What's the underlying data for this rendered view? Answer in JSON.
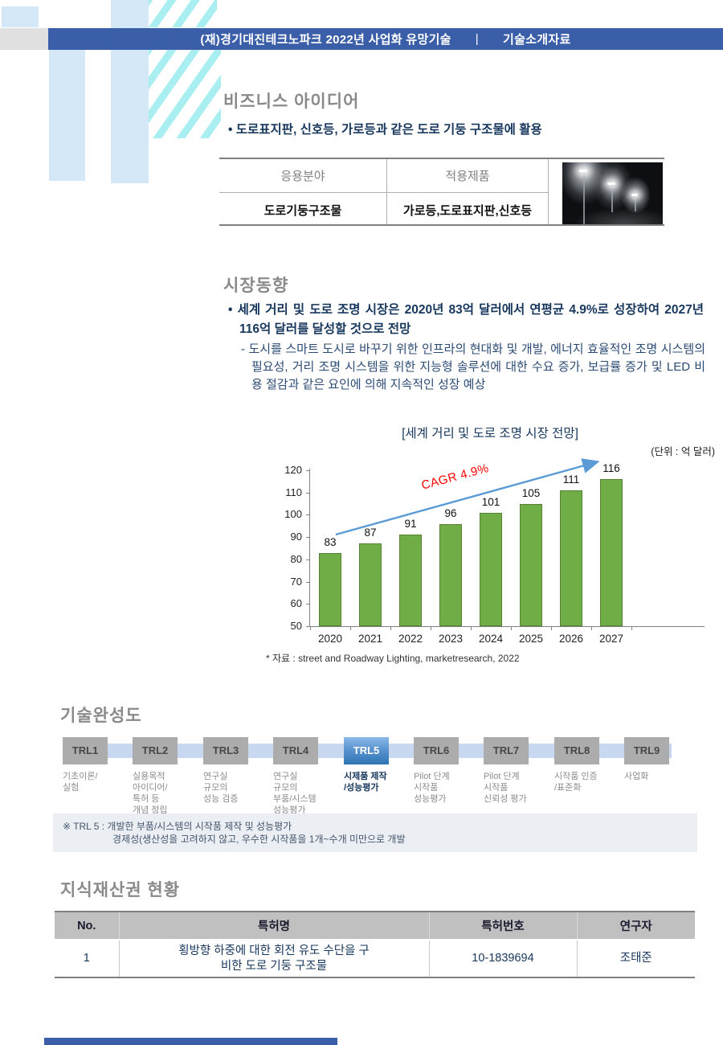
{
  "header": {
    "title_left": "(재)경기대진테크노파크 2022년 사업화 유망기술",
    "divider": "|",
    "title_right": "기술소개자료"
  },
  "business_idea": {
    "heading": "비즈니스 아이디어",
    "bullet": "• 도로표지판, 신호등, 가로등과 같은 도로 기둥 구조물에 활용",
    "table": {
      "headers": [
        "응용분야",
        "적용제품"
      ],
      "row": [
        "도로기둥구조물",
        "가로등,도로표지판,신호등"
      ]
    }
  },
  "market": {
    "heading": "시장동향",
    "bullet": "• 세계 거리 및 도로 조명 시장은 2020년 83억 달러에서 연평균 4.9%로 성장하여 2027년 116억 달러를 달성할 것으로 전망",
    "sub_bullet": "- 도시를 스마트 도시로 바꾸기 위한 인프라의 현대화 및 개발, 에너지 효율적인 조명 시스템의 필요성, 거리 조명 시스템을 위한 지능형 솔루션에 대한 수요 증가, 보급률 증가 및 LED 비용 절감과 같은 요인에 의해 지속적인 성장 예상"
  },
  "chart_data": {
    "type": "bar",
    "title": "[세계 거리 및 도로 조명 시장 전망]",
    "unit_label": "(단위 : 억 달러)",
    "categories": [
      "2020",
      "2021",
      "2022",
      "2023",
      "2024",
      "2025",
      "2026",
      "2027"
    ],
    "values": [
      83,
      87,
      91,
      96,
      101,
      105,
      111,
      116
    ],
    "ylabel": "",
    "xlabel": "",
    "ylim": [
      50,
      120
    ],
    "ytick_step": 10,
    "grid": false,
    "bar_color": "#70AD47",
    "bar_border_color": "#548235",
    "annotation": {
      "text": "CAGR 4.9%",
      "color": "#FF0000"
    },
    "arrow_color": "#5B9BD5",
    "source": "* 자료 : street and Roadway Lighting, marketresearch, 2022"
  },
  "trl": {
    "heading": "기술완성도",
    "active": "TRL5",
    "levels": [
      {
        "label": "TRL1",
        "desc_lines": [
          "기초이론/",
          "실험"
        ]
      },
      {
        "label": "TRL2",
        "desc_lines": [
          "실용목적",
          "아이디어/",
          "특허 등",
          "개념 정립"
        ]
      },
      {
        "label": "TRL3",
        "desc_lines": [
          "연구실",
          "규모의",
          "성능 검증"
        ]
      },
      {
        "label": "TRL4",
        "desc_lines": [
          "연구실",
          "규모의",
          "부품/시스템",
          "성능평가"
        ]
      },
      {
        "label": "TRL5",
        "desc_lines": [
          "시제품 제작",
          "/성능평가"
        ]
      },
      {
        "label": "TRL6",
        "desc_lines": [
          "Pilot 단계",
          "시작품",
          "성능평가"
        ]
      },
      {
        "label": "TRL7",
        "desc_lines": [
          "Pilot 단계",
          "시작품",
          "신뢰성 평가"
        ]
      },
      {
        "label": "TRL8",
        "desc_lines": [
          "시작품 인증",
          "/표준화"
        ]
      },
      {
        "label": "TRL9",
        "desc_lines": [
          "사업화"
        ]
      }
    ],
    "note_line1": "※ TRL 5  : 개발한 부품/시스템의 시작품 제작 및 성능평가",
    "note_line2": "경제성(생산성을 고려하지 않고, 우수한 시작품을 1개~수개 미만으로 개발"
  },
  "ip": {
    "heading": "지식재산권 현황",
    "columns": [
      "No.",
      "특허명",
      "특허번호",
      "연구자"
    ],
    "rows": [
      {
        "no": "1",
        "name": "횡방향 하중에 대한 회전 유도 수단을 구비한 도로 기둥 구조물",
        "number": "10-1839694",
        "researcher": "조태준"
      }
    ]
  },
  "colors": {
    "header_blue": "#3B5EA9",
    "navy_text": "#17375D",
    "bar_green": "#70AD47",
    "bar_green_border": "#548235",
    "trl_active_blue": "#2E74B5",
    "trl_grey": "#ACACAC",
    "cagr_red": "#FF0000",
    "arrow_blue": "#5B9BD5"
  }
}
